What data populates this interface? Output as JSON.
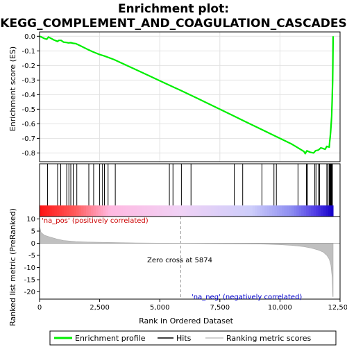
{
  "chart_data": {
    "type": "line",
    "title_line1": "Enrichment plot:",
    "title_line2": "KEGG_COMPLEMENT_AND_COAGULATION_CASCADES",
    "top_panel": {
      "ylabel": "Enrichment score (ES)",
      "ylim": [
        -0.86,
        0.03
      ],
      "yticks": [
        "0.0",
        "-0.1",
        "-0.2",
        "-0.3",
        "-0.4",
        "-0.5",
        "-0.6",
        "-0.7",
        "-0.8"
      ],
      "ytick_values": [
        0.0,
        -0.1,
        -0.2,
        -0.3,
        -0.4,
        -0.5,
        -0.6,
        -0.7,
        -0.8
      ],
      "grid": true,
      "series_color": "#00ee00",
      "profile": [
        [
          0,
          0.0
        ],
        [
          80,
          -0.005
        ],
        [
          200,
          -0.015
        ],
        [
          300,
          -0.02
        ],
        [
          370,
          -0.005
        ],
        [
          450,
          -0.012
        ],
        [
          600,
          -0.025
        ],
        [
          750,
          -0.035
        ],
        [
          800,
          -0.028
        ],
        [
          900,
          -0.028
        ],
        [
          1000,
          -0.04
        ],
        [
          1100,
          -0.042
        ],
        [
          1200,
          -0.045
        ],
        [
          1300,
          -0.044
        ],
        [
          1400,
          -0.048
        ],
        [
          1500,
          -0.05
        ],
        [
          1700,
          -0.065
        ],
        [
          2000,
          -0.09
        ],
        [
          2200,
          -0.105
        ],
        [
          2500,
          -0.125
        ],
        [
          2700,
          -0.135
        ],
        [
          3100,
          -0.16
        ],
        [
          3500,
          -0.19
        ],
        [
          4000,
          -0.228
        ],
        [
          4500,
          -0.266
        ],
        [
          5000,
          -0.305
        ],
        [
          5500,
          -0.343
        ],
        [
          5900,
          -0.373
        ],
        [
          6500,
          -0.42
        ],
        [
          7000,
          -0.46
        ],
        [
          7500,
          -0.5
        ],
        [
          8000,
          -0.54
        ],
        [
          8500,
          -0.58
        ],
        [
          9000,
          -0.62
        ],
        [
          9500,
          -0.66
        ],
        [
          10000,
          -0.7
        ],
        [
          10500,
          -0.74
        ],
        [
          10800,
          -0.77
        ],
        [
          11000,
          -0.79
        ],
        [
          11050,
          -0.805
        ],
        [
          11120,
          -0.785
        ],
        [
          11250,
          -0.795
        ],
        [
          11400,
          -0.8
        ],
        [
          11480,
          -0.785
        ],
        [
          11600,
          -0.78
        ],
        [
          11700,
          -0.765
        ],
        [
          11800,
          -0.77
        ],
        [
          11880,
          -0.775
        ],
        [
          11950,
          -0.755
        ],
        [
          12050,
          -0.76
        ],
        [
          12070,
          -0.72
        ],
        [
          12090,
          -0.69
        ],
        [
          12110,
          -0.65
        ],
        [
          12130,
          -0.6
        ],
        [
          12150,
          -0.55
        ],
        [
          12160,
          -0.5
        ],
        [
          12170,
          -0.44
        ],
        [
          12180,
          -0.38
        ],
        [
          12190,
          -0.31
        ],
        [
          12200,
          -0.2
        ],
        [
          12205,
          -0.1
        ],
        [
          12210,
          0.0
        ]
      ]
    },
    "hits_panel": {
      "hit_positions": [
        330,
        750,
        880,
        1130,
        1220,
        1300,
        1400,
        1550,
        2050,
        2250,
        2500,
        2620,
        2700,
        2850,
        3150,
        5400,
        5550,
        5900,
        6300,
        8100,
        8450,
        9250,
        9750,
        9850,
        10750,
        11100,
        11150,
        11450,
        11500,
        11600,
        11650,
        11950,
        12000,
        12050,
        12080,
        12100,
        12120,
        12140,
        12160,
        12180
      ]
    },
    "rank_panel": {
      "ylabel": "Ranked list metric (PreRanked)",
      "ylim": [
        -23,
        11
      ],
      "yticks": [
        "10",
        "5",
        "0",
        "-5",
        "-10",
        "-15",
        "-20"
      ],
      "ytick_values": [
        10,
        5,
        0,
        -5,
        -10,
        -15,
        -20
      ],
      "fill_color": "#c0c0c0",
      "metric": [
        [
          0,
          7.0
        ],
        [
          60,
          4.5
        ],
        [
          200,
          3.3
        ],
        [
          400,
          2.7
        ],
        [
          700,
          1.8
        ],
        [
          1000,
          1.1
        ],
        [
          1500,
          0.7
        ],
        [
          2000,
          0.5
        ],
        [
          3000,
          0.3
        ],
        [
          4000,
          0.15
        ],
        [
          5000,
          0.05
        ],
        [
          5874,
          0
        ],
        [
          7000,
          -0.1
        ],
        [
          8000,
          -0.2
        ],
        [
          9000,
          -0.3
        ],
        [
          9500,
          -0.4
        ],
        [
          10000,
          -0.6
        ],
        [
          10500,
          -0.9
        ],
        [
          11000,
          -1.4
        ],
        [
          11300,
          -2.0
        ],
        [
          11600,
          -2.8
        ],
        [
          11800,
          -3.7
        ],
        [
          11950,
          -5.0
        ],
        [
          12050,
          -6.5
        ],
        [
          12120,
          -9.0
        ],
        [
          12170,
          -14.0
        ],
        [
          12200,
          -22.0
        ],
        [
          12210,
          -22.0
        ]
      ],
      "pos_label": "'na_pos' (positively correlated)",
      "neg_label": "'na_neg' (negatively correlated)",
      "zero_cross_label": "Zero cross at 5874",
      "zero_cross": 5874
    },
    "x_axis": {
      "xlabel": "Rank in Ordered Dataset",
      "xlim": [
        0,
        12500
      ],
      "xticks": [
        "0",
        "2,500",
        "5,000",
        "7,500",
        "10,000",
        "12,500"
      ],
      "xtick_values": [
        0,
        2500,
        5000,
        7500,
        10000,
        12500
      ],
      "n_genes": 12210
    },
    "legend": {
      "entries": [
        {
          "label": "Enrichment profile",
          "color": "#00ee00"
        },
        {
          "label": "Hits",
          "color": "#000000"
        },
        {
          "label": "Ranking metric scores",
          "color": "#c0c0c0"
        }
      ],
      "placement": "bottom"
    }
  }
}
